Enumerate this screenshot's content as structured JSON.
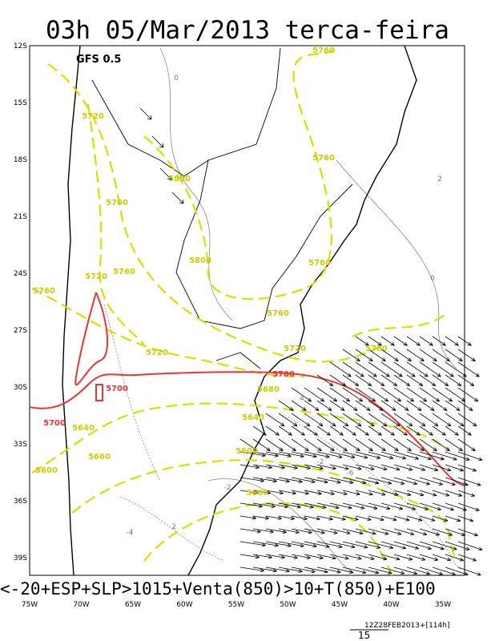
{
  "header": {
    "title": "03h 05/Mar/2013 terca-feira",
    "model": "GFS 0.5"
  },
  "lat_labels": [
    "12S",
    "15S",
    "18S",
    "21S",
    "24S",
    "27S",
    "30S",
    "33S",
    "36S",
    "39S"
  ],
  "lon_labels": [
    "75W",
    "70W",
    "65W",
    "60W",
    "55W",
    "50W",
    "45W",
    "40W",
    "35W"
  ],
  "height_labels": [
    "5760",
    "5720",
    "5800",
    "5760",
    "5760",
    "5800",
    "5760",
    "5720",
    "5760",
    "5760",
    "5760",
    "5720",
    "5760",
    "5720",
    "5680",
    "5640",
    "5640",
    "5600",
    "5660",
    "5600",
    "5660"
  ],
  "temperature_labels": [
    "5700",
    "5700",
    "5700"
  ],
  "anomaly_labels": [
    "0",
    "0",
    "2",
    "-2",
    "-4",
    "2",
    "-6",
    "4",
    "-2"
  ],
  "caption": "<-20+ESP+SLP>1015+Venta(850)>10+T(850)+E100",
  "footer": {
    "run": "12Z28FEB2013+[114h]",
    "vector_scale": "15"
  }
}
